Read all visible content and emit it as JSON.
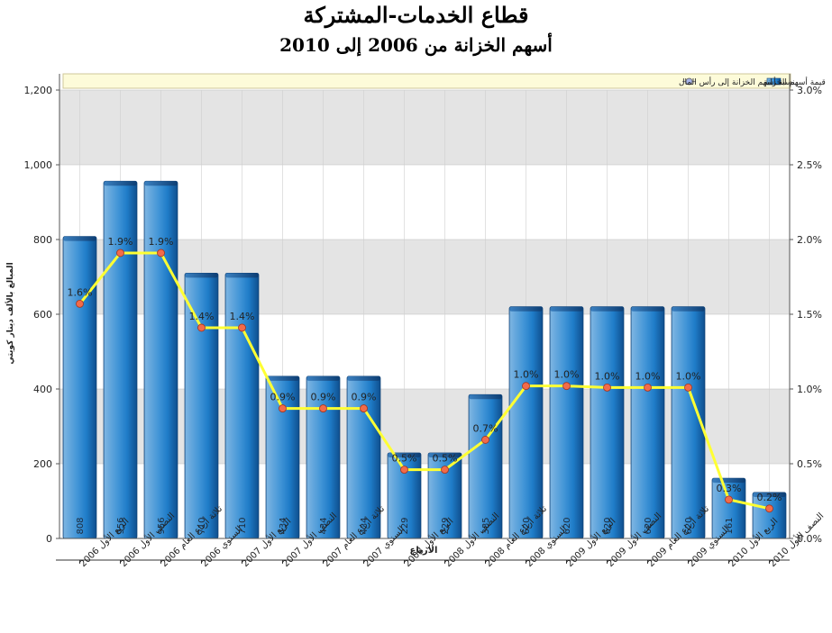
{
  "chart_data": {
    "type": "bar",
    "title": "قطاع الخدمات-المشتركة",
    "subtitle": "أسهم الخزانة من 2006 إلى 2010",
    "xlabel": "الارباع",
    "ylabel": "المبالغ بالألف دينار كويتي",
    "ylim": [
      0,
      1200
    ],
    "y2lim": [
      0,
      3.0
    ],
    "y_ticks": [
      "0",
      "200",
      "400",
      "600",
      "800",
      "1,000",
      "1,200"
    ],
    "y2_ticks": [
      "0.0%",
      "0.5%",
      "1.0%",
      "1.5%",
      "2.0%",
      "2.5%",
      "3.0%"
    ],
    "grid": true,
    "legend_position": "top",
    "categories": [
      "الربع الأول 2006",
      "النصف الأول 2006",
      "ثلاثة أرباع العام 2006",
      "السنوي 2006",
      "الربع الأول 2007",
      "النصف الأول 2007",
      "ثلاثة أرباع العام 2007",
      "السنوي 2007",
      "الربع الأول 2008",
      "النصف الأول 2008",
      "ثلاثة أرباع العام 2008",
      "السنوي 2008",
      "الربع الأول 2009",
      "النصف الأول 2009",
      "ثلاثة أرباع العام 2009",
      "السنوي 2009",
      "الربع الأول 2010",
      "النصف الأول 2010"
    ],
    "series": [
      {
        "name": "قيمة أسهم الخزانة",
        "type": "bar",
        "axis": "left",
        "color": "#1f7cc8",
        "values": [
          808,
          956,
          956,
          710,
          710,
          434,
          434,
          434,
          229,
          229,
          385,
          620,
          620,
          620,
          620,
          620,
          161,
          123
        ],
        "labels": [
          "808",
          "956",
          "956",
          "710",
          "710",
          "434",
          "434",
          "434",
          "229",
          "229",
          "385",
          "620",
          "620",
          "620",
          "620",
          "620",
          "161",
          ""
        ]
      },
      {
        "name": "نسبة أسهم الخزانة إلى رأس المال",
        "type": "line",
        "axis": "right",
        "color": "#ffff33",
        "values": [
          1.57,
          1.91,
          1.91,
          1.41,
          1.41,
          0.87,
          0.87,
          0.87,
          0.46,
          0.46,
          0.66,
          1.02,
          1.02,
          1.01,
          1.01,
          1.01,
          0.26,
          0.2
        ],
        "labels": [
          "1.6%",
          "1.9%",
          "1.9%",
          "1.4%",
          "1.4%",
          "0.9%",
          "0.9%",
          "0.9%",
          "0.5%",
          "0.5%",
          "0.7%",
          "1.0%",
          "1.0%",
          "1.0%",
          "1.0%",
          "1.0%",
          "0.3%",
          "0.2%"
        ]
      }
    ]
  }
}
